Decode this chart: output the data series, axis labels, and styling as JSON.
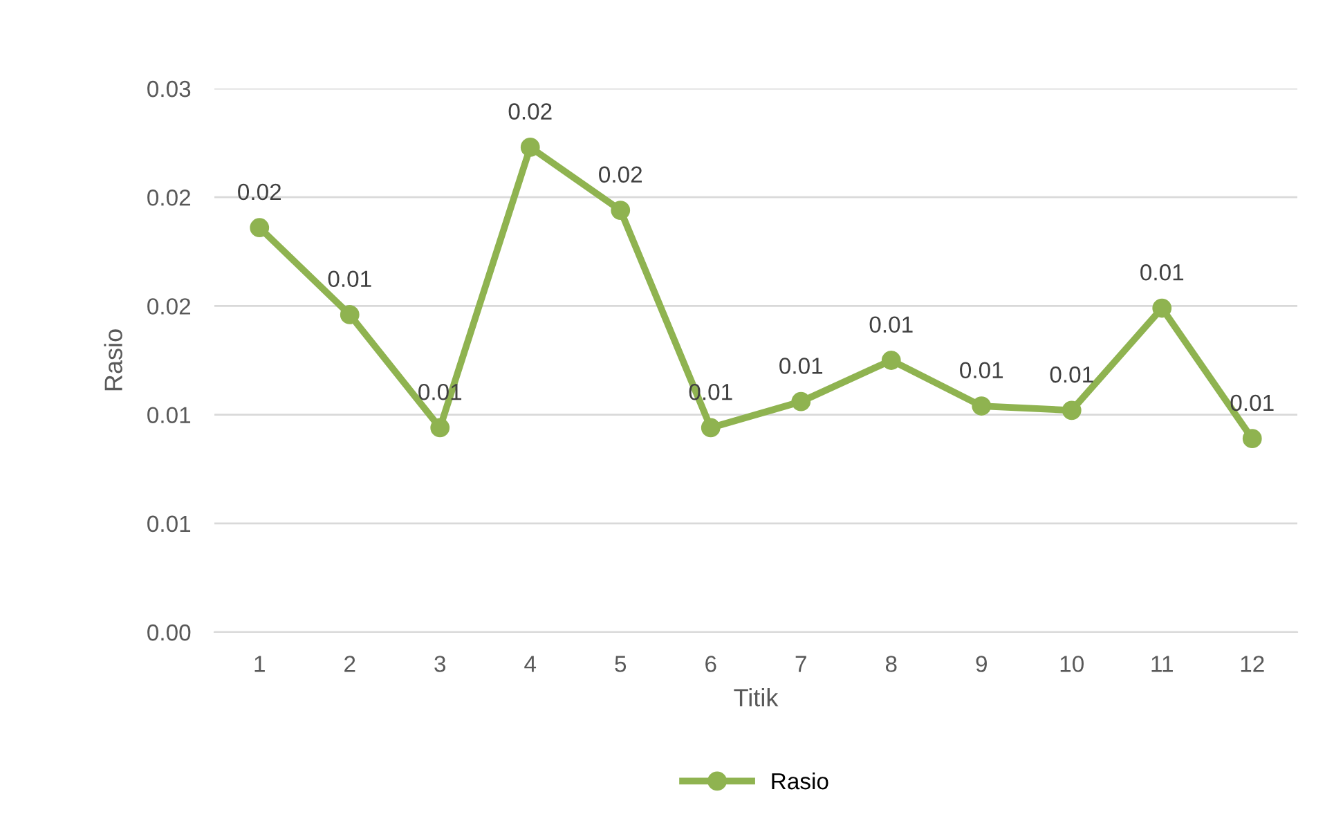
{
  "chart_data": {
    "type": "line",
    "xlabel": "Titik",
    "ylabel": "Rasio",
    "categories": [
      "1",
      "2",
      "3",
      "4",
      "5",
      "6",
      "7",
      "8",
      "9",
      "10",
      "11",
      "12"
    ],
    "series": [
      {
        "name": "Rasio",
        "color": "#8fb350",
        "values": [
          0.0186,
          0.0146,
          0.0094,
          0.0223,
          0.0194,
          0.0094,
          0.0106,
          0.0125,
          0.0104,
          0.0102,
          0.0149,
          0.0089
        ],
        "value_labels": [
          "0.02",
          "0.01",
          "0.01",
          "0.02",
          "0.02",
          "0.01",
          "0.01",
          "0.01",
          "0.01",
          "0.01",
          "0.01",
          "0.01"
        ]
      }
    ],
    "ylim": [
      0,
      0.025
    ],
    "yticks": [
      {
        "value": 0,
        "label": "0.00"
      },
      {
        "value": 0.005,
        "label": "0.01"
      },
      {
        "value": 0.01,
        "label": "0.01"
      },
      {
        "value": 0.015,
        "label": "0.02"
      },
      {
        "value": 0.02,
        "label": "0.02"
      },
      {
        "value": 0.025,
        "label": "0.03"
      }
    ],
    "grid": "y",
    "legend": "bottom",
    "marker": "circle",
    "line_style": "solid"
  }
}
